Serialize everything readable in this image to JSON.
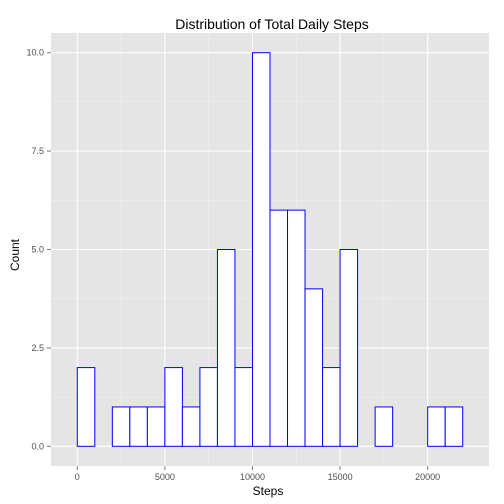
{
  "chart_data": {
    "type": "bar",
    "title": "Distribution of Total Daily Steps",
    "xlabel": "Steps",
    "ylabel": "Count",
    "binwidth": 1000,
    "x_ticks": [
      0,
      5000,
      10000,
      15000,
      20000
    ],
    "x_tick_labels": [
      "0",
      "5000",
      "10000",
      "15000",
      "20000"
    ],
    "y_ticks": [
      0,
      2.5,
      5,
      7.5,
      10
    ],
    "y_tick_labels": [
      "0.0",
      "2.5",
      "5.0",
      "7.5",
      "10.0"
    ],
    "xlim": [
      -1500,
      23500
    ],
    "ylim": [
      -0.5,
      10.5
    ],
    "bin_starts": [
      -1000,
      0,
      1000,
      2000,
      3000,
      4000,
      5000,
      6000,
      7000,
      8000,
      9000,
      10000,
      11000,
      12000,
      13000,
      14000,
      15000,
      16000,
      17000,
      18000,
      19000,
      20000,
      21000,
      22000
    ],
    "values": [
      0,
      2,
      0,
      1,
      1,
      1,
      2,
      1,
      2,
      5,
      2,
      10,
      6,
      6,
      4,
      2,
      5,
      0,
      1,
      0,
      0,
      1,
      1,
      0
    ],
    "grid": true,
    "colors": {
      "panel_background": "#e5e5e5",
      "grid": "#ffffff",
      "bar_fill": "#ffffff",
      "bar_outline": "#0000ff"
    }
  }
}
